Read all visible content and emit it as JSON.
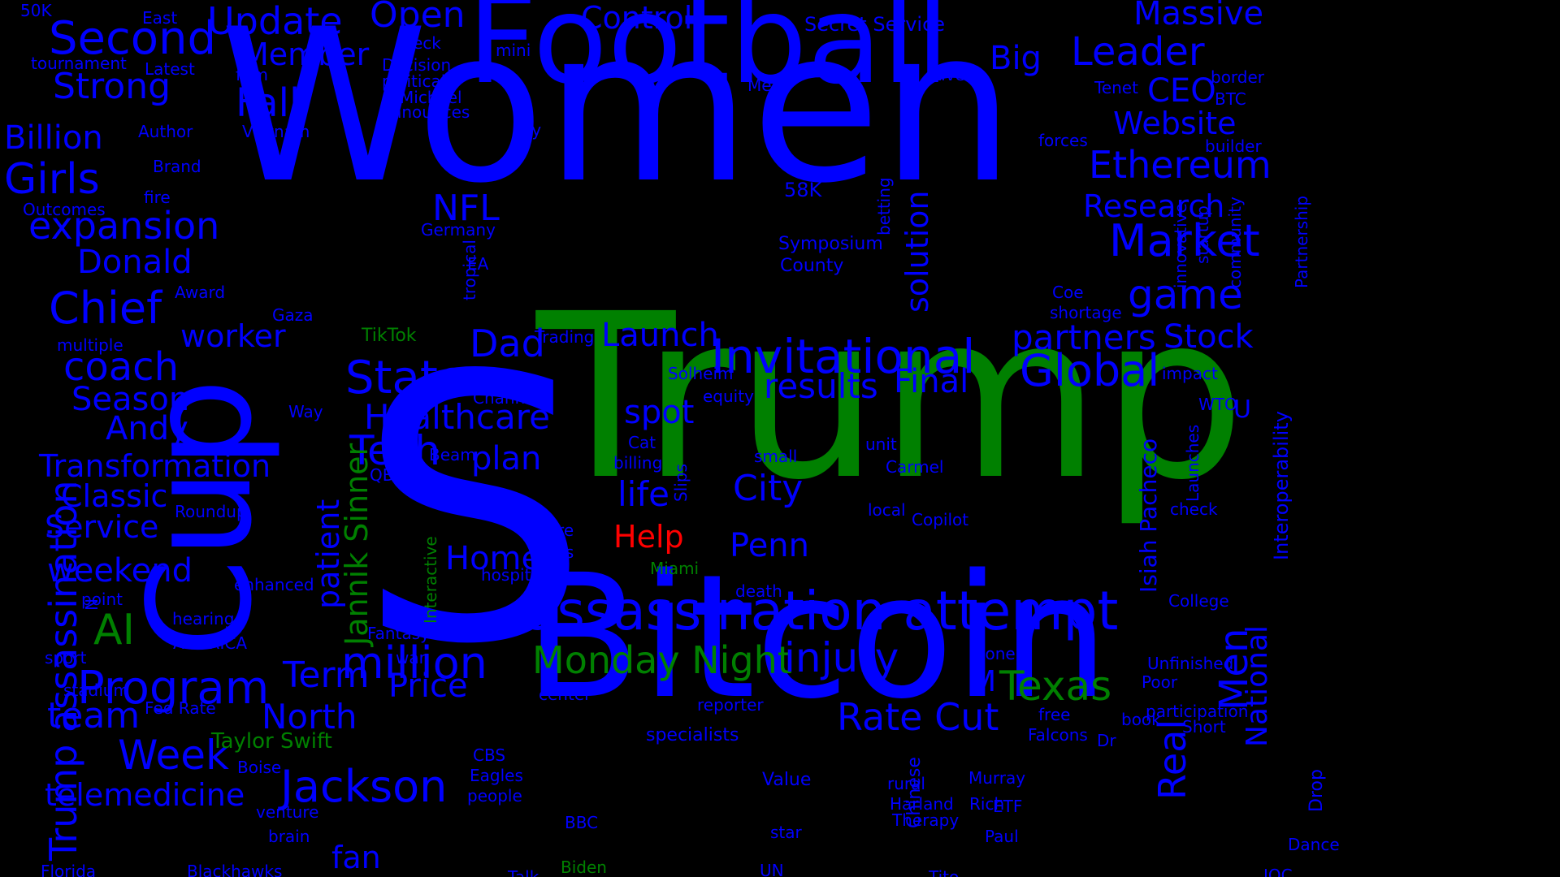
{
  "palette": {
    "background": "#000000",
    "blue": "#0000ff",
    "green": "#008000",
    "red": "#ff0000"
  },
  "words": [
    {
      "text": "Women",
      "color": "blue"
    },
    {
      "text": "S",
      "color": "blue"
    },
    {
      "text": "Trump",
      "color": "green"
    },
    {
      "text": "Bitcoin",
      "color": "blue"
    },
    {
      "text": "Football",
      "color": "blue"
    },
    {
      "text": "Cup",
      "color": "blue"
    },
    {
      "text": "assassination attempt",
      "color": "blue"
    },
    {
      "text": "Invitational",
      "color": "blue"
    },
    {
      "text": "Jackson",
      "color": "blue"
    },
    {
      "text": "Program",
      "color": "blue"
    },
    {
      "text": "million",
      "color": "blue"
    },
    {
      "text": "Global",
      "color": "blue"
    },
    {
      "text": "Market",
      "color": "blue"
    },
    {
      "text": "Second",
      "color": "blue"
    },
    {
      "text": "Leader",
      "color": "blue"
    },
    {
      "text": "Ethereum",
      "color": "blue"
    },
    {
      "text": "State",
      "color": "blue"
    },
    {
      "text": "Monday Night",
      "color": "green"
    },
    {
      "text": "injury",
      "color": "blue"
    },
    {
      "text": "Texas",
      "color": "green"
    },
    {
      "text": "Rate Cut",
      "color": "blue"
    },
    {
      "text": "Update",
      "color": "blue"
    },
    {
      "text": "Open",
      "color": "blue"
    },
    {
      "text": "Massive",
      "color": "blue"
    },
    {
      "text": "Girls",
      "color": "blue"
    },
    {
      "text": "Chief",
      "color": "blue"
    },
    {
      "text": "expansion",
      "color": "blue"
    },
    {
      "text": "Strong",
      "color": "blue"
    },
    {
      "text": "Billion",
      "color": "blue"
    },
    {
      "text": "Donald",
      "color": "blue"
    },
    {
      "text": "coach",
      "color": "blue"
    },
    {
      "text": "Season",
      "color": "blue"
    },
    {
      "text": "Andy",
      "color": "blue"
    },
    {
      "text": "Transformation",
      "color": "blue"
    },
    {
      "text": "Classic",
      "color": "blue"
    },
    {
      "text": "Service",
      "color": "blue"
    },
    {
      "text": "weekend",
      "color": "blue"
    },
    {
      "text": "AI",
      "color": "green"
    },
    {
      "text": "Fall",
      "color": "blue"
    },
    {
      "text": "Member",
      "color": "blue"
    },
    {
      "text": "Control",
      "color": "blue"
    },
    {
      "text": "Big",
      "color": "blue"
    },
    {
      "text": "CEO",
      "color": "blue"
    },
    {
      "text": "Website",
      "color": "blue"
    },
    {
      "text": "Research",
      "color": "blue"
    },
    {
      "text": "game",
      "color": "blue"
    },
    {
      "text": "partners",
      "color": "blue"
    },
    {
      "text": "Stock",
      "color": "blue"
    },
    {
      "text": "results",
      "color": "blue"
    },
    {
      "text": "Final",
      "color": "blue"
    },
    {
      "text": "Healthcare",
      "color": "blue"
    },
    {
      "text": "Tech",
      "color": "blue"
    },
    {
      "text": "plan",
      "color": "blue"
    },
    {
      "text": "spot",
      "color": "blue"
    },
    {
      "text": "life",
      "color": "blue"
    },
    {
      "text": "City",
      "color": "blue"
    },
    {
      "text": "Penn",
      "color": "blue"
    },
    {
      "text": "Home",
      "color": "blue"
    },
    {
      "text": "Help",
      "color": "red"
    },
    {
      "text": "Dad",
      "color": "blue"
    },
    {
      "text": "Launch",
      "color": "blue"
    },
    {
      "text": "NFL",
      "color": "blue"
    },
    {
      "text": "worker",
      "color": "blue"
    },
    {
      "text": "Term",
      "color": "blue"
    },
    {
      "text": "Price",
      "color": "blue"
    },
    {
      "text": "North",
      "color": "blue"
    },
    {
      "text": "team",
      "color": "blue"
    },
    {
      "text": "Week",
      "color": "blue"
    },
    {
      "text": "telemedicine",
      "color": "blue"
    },
    {
      "text": "fan",
      "color": "blue"
    },
    {
      "text": "Taylor Swift",
      "color": "green"
    },
    {
      "text": "M",
      "color": "blue"
    },
    {
      "text": "Men",
      "color": "blue"
    },
    {
      "text": "U",
      "color": "blue"
    },
    {
      "text": "Real",
      "color": "blue"
    },
    {
      "text": "National",
      "color": "blue"
    },
    {
      "text": "Trump assassination",
      "color": "blue"
    },
    {
      "text": "Jannik Sinner",
      "color": "green"
    },
    {
      "text": "patient",
      "color": "blue"
    },
    {
      "text": "solution",
      "color": "blue"
    },
    {
      "text": "Isiah Pacheco",
      "color": "blue"
    },
    {
      "text": "Interoperability",
      "color": "blue"
    },
    {
      "text": "50K",
      "color": "blue"
    },
    {
      "text": "East",
      "color": "blue"
    },
    {
      "text": "tournament",
      "color": "blue"
    },
    {
      "text": "Latest",
      "color": "blue"
    },
    {
      "text": "Neck",
      "color": "blue"
    },
    {
      "text": "mini",
      "color": "blue"
    },
    {
      "text": "Decision",
      "color": "blue"
    },
    {
      "text": "political",
      "color": "blue"
    },
    {
      "text": "Michael",
      "color": "blue"
    },
    {
      "text": "Announces",
      "color": "blue"
    },
    {
      "text": "firm",
      "color": "blue"
    },
    {
      "text": "Vietnam",
      "color": "blue"
    },
    {
      "text": "Author",
      "color": "blue"
    },
    {
      "text": "Brand",
      "color": "blue"
    },
    {
      "text": "fire",
      "color": "blue"
    },
    {
      "text": "Outcomes",
      "color": "blue"
    },
    {
      "text": "Award",
      "color": "blue"
    },
    {
      "text": "Gaza",
      "color": "blue"
    },
    {
      "text": "multiple",
      "color": "blue"
    },
    {
      "text": "TikTok",
      "color": "green"
    },
    {
      "text": "Secret Service",
      "color": "blue"
    },
    {
      "text": "Live",
      "color": "blue"
    },
    {
      "text": "Meet",
      "color": "blue"
    },
    {
      "text": "Key",
      "color": "blue"
    },
    {
      "text": "Tenet",
      "color": "blue"
    },
    {
      "text": "border",
      "color": "blue"
    },
    {
      "text": "BTC",
      "color": "blue"
    },
    {
      "text": "forces",
      "color": "blue"
    },
    {
      "text": "builder",
      "color": "blue"
    },
    {
      "text": "58K",
      "color": "blue"
    },
    {
      "text": "Germany",
      "color": "blue"
    },
    {
      "text": "Symposium",
      "color": "blue"
    },
    {
      "text": "County",
      "color": "blue"
    },
    {
      "text": "EA",
      "color": "blue"
    },
    {
      "text": "Coe",
      "color": "blue"
    },
    {
      "text": "shortage",
      "color": "blue"
    },
    {
      "text": "Trading",
      "color": "blue"
    },
    {
      "text": "Solheim",
      "color": "blue"
    },
    {
      "text": "equity",
      "color": "blue"
    },
    {
      "text": "high",
      "color": "blue"
    },
    {
      "text": "Channel",
      "color": "blue"
    },
    {
      "text": "impact",
      "color": "blue"
    },
    {
      "text": "WTO",
      "color": "blue"
    },
    {
      "text": "Way",
      "color": "blue"
    },
    {
      "text": "Cat",
      "color": "blue"
    },
    {
      "text": "billing",
      "color": "blue"
    },
    {
      "text": "unit",
      "color": "blue"
    },
    {
      "text": "small",
      "color": "blue"
    },
    {
      "text": "Carmel",
      "color": "blue"
    },
    {
      "text": "Beam",
      "color": "blue"
    },
    {
      "text": "QB",
      "color": "blue"
    },
    {
      "text": "Roundup",
      "color": "blue"
    },
    {
      "text": "local",
      "color": "blue"
    },
    {
      "text": "check",
      "color": "blue"
    },
    {
      "text": "empire",
      "color": "blue"
    },
    {
      "text": "Copilot",
      "color": "blue"
    },
    {
      "text": "Posts",
      "color": "blue"
    },
    {
      "text": "hospital",
      "color": "blue"
    },
    {
      "text": "Miami",
      "color": "green"
    },
    {
      "text": "death",
      "color": "blue"
    },
    {
      "text": "enhanced",
      "color": "blue"
    },
    {
      "text": "point",
      "color": "blue"
    },
    {
      "text": "hearing",
      "color": "blue"
    },
    {
      "text": "AMERICA",
      "color": "blue"
    },
    {
      "text": "College",
      "color": "blue"
    },
    {
      "text": "Fantasy",
      "color": "blue"
    },
    {
      "text": "war",
      "color": "blue"
    },
    {
      "text": "sport",
      "color": "blue"
    },
    {
      "text": "zone",
      "color": "blue"
    },
    {
      "text": "Unfinished",
      "color": "blue"
    },
    {
      "text": "Poor",
      "color": "blue"
    },
    {
      "text": "center",
      "color": "blue"
    },
    {
      "text": "stadium",
      "color": "blue"
    },
    {
      "text": "Fed Rate",
      "color": "blue"
    },
    {
      "text": "reporter",
      "color": "blue"
    },
    {
      "text": "participation",
      "color": "blue"
    },
    {
      "text": "free",
      "color": "blue"
    },
    {
      "text": "book",
      "color": "blue"
    },
    {
      "text": "Short",
      "color": "blue"
    },
    {
      "text": "Falcons",
      "color": "blue"
    },
    {
      "text": "Dr",
      "color": "blue"
    },
    {
      "text": "specialists",
      "color": "blue"
    },
    {
      "text": "Boise",
      "color": "blue"
    },
    {
      "text": "CBS",
      "color": "blue"
    },
    {
      "text": "Eagles",
      "color": "blue"
    },
    {
      "text": "people",
      "color": "blue"
    },
    {
      "text": "Value",
      "color": "blue"
    },
    {
      "text": "Murray",
      "color": "blue"
    },
    {
      "text": "rural",
      "color": "blue"
    },
    {
      "text": "Harland",
      "color": "blue"
    },
    {
      "text": "Rich",
      "color": "blue"
    },
    {
      "text": "Therapy",
      "color": "blue"
    },
    {
      "text": "ETF",
      "color": "blue"
    },
    {
      "text": "venture",
      "color": "blue"
    },
    {
      "text": "brain",
      "color": "blue"
    },
    {
      "text": "BBC",
      "color": "blue"
    },
    {
      "text": "star",
      "color": "blue"
    },
    {
      "text": "Paul",
      "color": "blue"
    },
    {
      "text": "Dance",
      "color": "blue"
    },
    {
      "text": "Florida",
      "color": "blue"
    },
    {
      "text": "Blackhawks",
      "color": "blue"
    },
    {
      "text": "Talk",
      "color": "blue"
    },
    {
      "text": "Biden",
      "color": "green"
    },
    {
      "text": "UN",
      "color": "blue"
    },
    {
      "text": "Tito",
      "color": "blue"
    },
    {
      "text": "IOC",
      "color": "blue"
    },
    {
      "text": "betting",
      "color": "blue"
    },
    {
      "text": "innovative",
      "color": "blue"
    },
    {
      "text": "startup",
      "color": "blue"
    },
    {
      "text": "community",
      "color": "blue"
    },
    {
      "text": "Partnership",
      "color": "blue"
    },
    {
      "text": "tropical",
      "color": "blue"
    },
    {
      "text": "Slips",
      "color": "blue"
    },
    {
      "text": "Launches",
      "color": "blue"
    },
    {
      "text": "Interactive",
      "color": "green"
    },
    {
      "text": "N",
      "color": "blue"
    },
    {
      "text": "Chinese",
      "color": "blue"
    },
    {
      "text": "Drop",
      "color": "blue"
    }
  ]
}
